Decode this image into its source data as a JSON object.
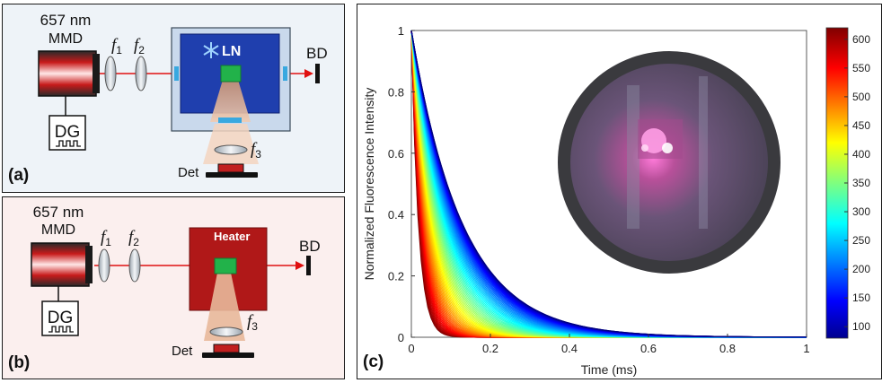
{
  "panel_a": {
    "tag": "(a)",
    "wavelength": "657 nm",
    "source": "MMD",
    "lens1": "f",
    "lens1_sub": "1",
    "lens2": "f",
    "lens2_sub": "2",
    "lens3": "f",
    "lens3_sub": "3",
    "chamber": "LN",
    "beam_dump": "BD",
    "generator": "DG",
    "detector": "Det"
  },
  "panel_b": {
    "tag": "(b)",
    "wavelength": "657 nm",
    "source": "MMD",
    "lens1": "f",
    "lens1_sub": "1",
    "lens2": "f",
    "lens2_sub": "2",
    "lens3": "f",
    "lens3_sub": "3",
    "chamber": "Heater",
    "beam_dump": "BD",
    "generator": "DG",
    "detector": "Det"
  },
  "panel_c": {
    "tag": "(c)"
  },
  "colors": {
    "laser": "#e01010",
    "ln_chamber": "#1f3fae",
    "heater": "#b01818",
    "crystal": "#22b24a",
    "window": "#38a8e0"
  },
  "chart_data": {
    "type": "line",
    "xlabel": "Time (ms)",
    "ylabel": "Normalized Fluorescence Intensity",
    "xlim": [
      0,
      1
    ],
    "ylim": [
      0,
      1
    ],
    "xticks": [
      "0",
      "0.2",
      "0.4",
      "0.6",
      "0.8",
      "1"
    ],
    "yticks": [
      "0",
      "0.2",
      "0.4",
      "0.6",
      "0.8",
      "1"
    ],
    "curve_model": "single exponential decay from 1 at t = 0",
    "temperature_range": [
      80,
      620
    ],
    "decay_time_ms": {
      "coldest": 0.13,
      "hottest": 0.018
    },
    "colorbar": {
      "ticks": [
        "600",
        "550",
        "500",
        "450",
        "400",
        "350",
        "300",
        "250",
        "200",
        "150",
        "100"
      ],
      "range": [
        80,
        620
      ],
      "colormap": "jet"
    },
    "inset": "photograph of the sample through a round viewport, glowing pink"
  }
}
